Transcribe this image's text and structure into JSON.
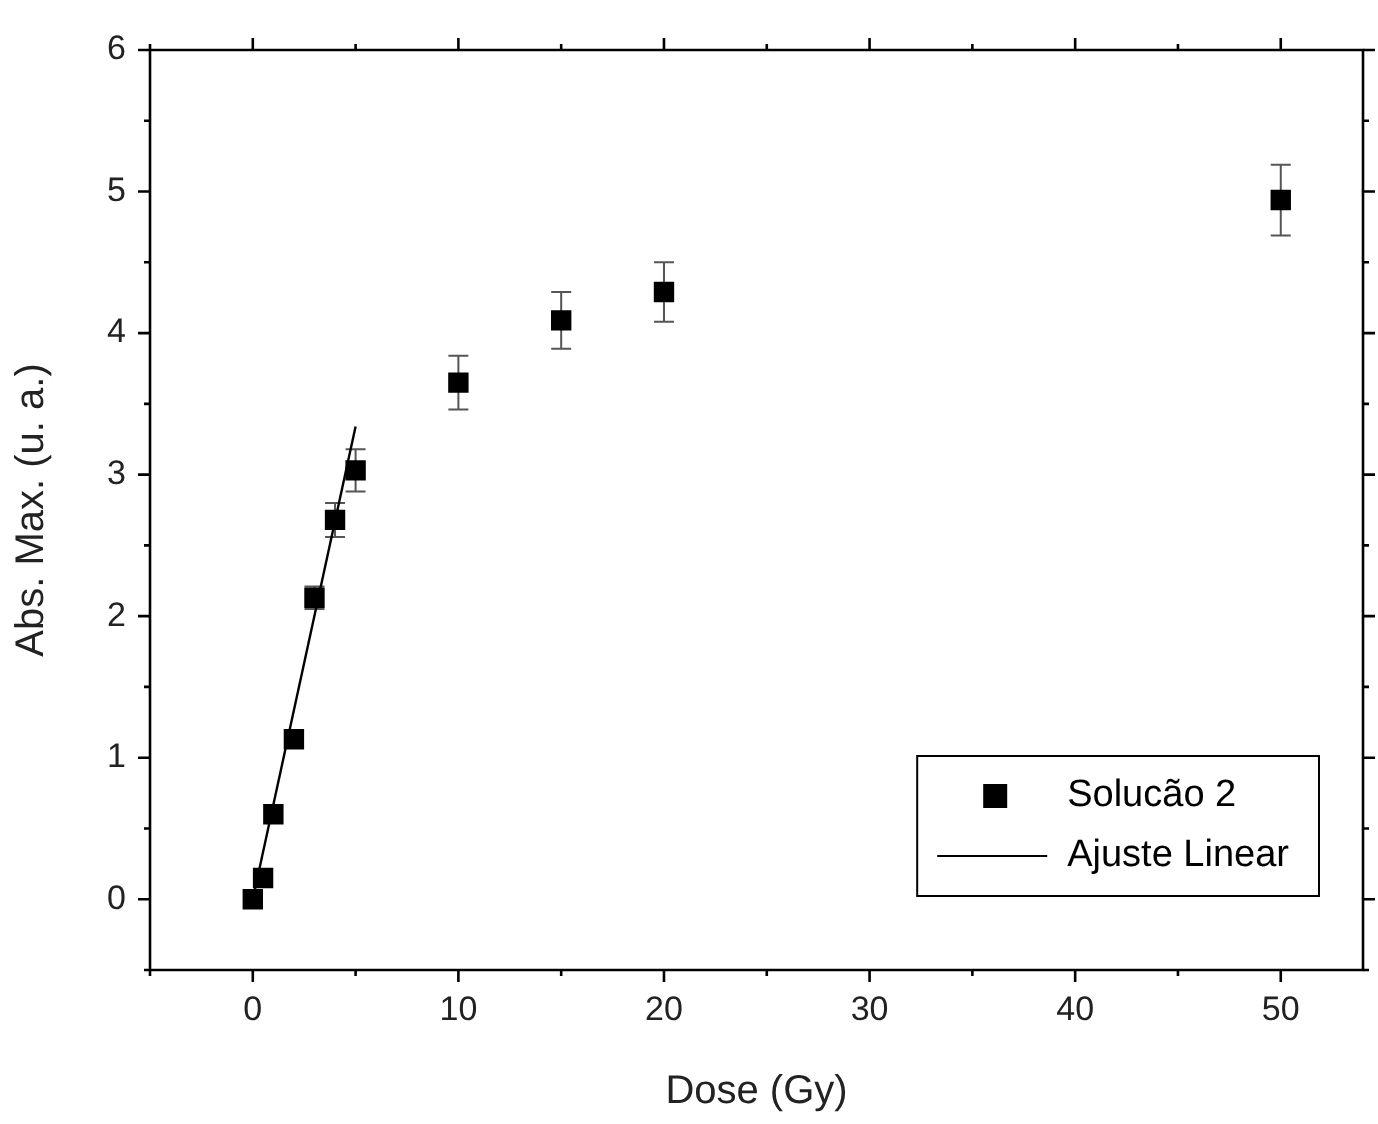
{
  "chart_data": {
    "type": "scatter",
    "xlabel": "Dose (Gy)",
    "ylabel": "Abs. Max. (u. a.)",
    "xlim": [
      -5,
      54
    ],
    "xticks": [
      0,
      10,
      20,
      30,
      40,
      50
    ],
    "ylim": [
      -0.5,
      6
    ],
    "yticks": [
      0,
      1,
      2,
      3,
      4,
      5,
      6
    ],
    "grid": false,
    "legend": "bottom right",
    "series": [
      {
        "name": "Solucão 2",
        "marker": "square",
        "color": "#000000",
        "x": [
          0,
          0.5,
          1,
          2,
          3,
          4,
          5,
          10,
          15,
          20,
          50
        ],
        "values": [
          0,
          0.15,
          0.6,
          1.13,
          2.13,
          2.68,
          3.03,
          3.65,
          4.09,
          4.29,
          4.94
        ],
        "errors": [
          null,
          null,
          null,
          null,
          0.08,
          0.12,
          0.15,
          0.19,
          0.2,
          0.21,
          0.25
        ]
      },
      {
        "name": "Ajuste Linear",
        "type": "line",
        "color": "#000000",
        "x": [
          0,
          5
        ],
        "values": [
          0,
          3.34
        ],
        "line_style": "solid"
      }
    ]
  }
}
